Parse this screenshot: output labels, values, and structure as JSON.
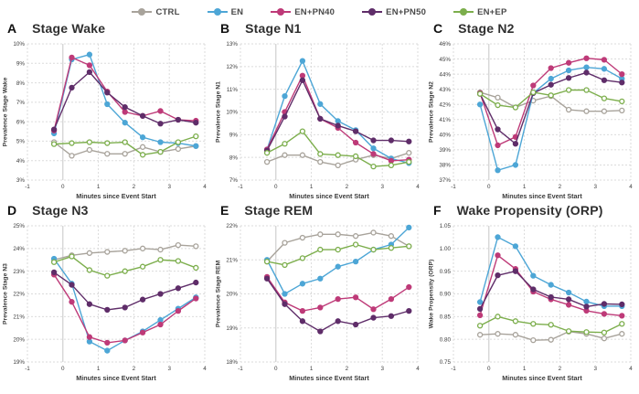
{
  "figure_title": "",
  "legend": {
    "items": [
      {
        "label": "CTRL",
        "color": "#A8A39B",
        "marker": "open"
      },
      {
        "label": "EN",
        "color": "#4DA6D6",
        "marker": "filled"
      },
      {
        "label": "EN+PN40",
        "color": "#BE3A78",
        "marker": "filled"
      },
      {
        "label": "EN+PN50",
        "color": "#5F2D69",
        "marker": "filled"
      },
      {
        "label": "EN+EP",
        "color": "#7CAE4C",
        "marker": "open"
      }
    ]
  },
  "style": {
    "grid_color": "#DBDBDB",
    "zero_line_color": "#C6C6C6",
    "tick_text_color": "#3d3d3d",
    "axis_label_color": "#3b3b3b"
  },
  "chart_data": [
    {
      "type": "line",
      "panel": "A",
      "title": "Stage Wake",
      "ylabel": "Prevalence Stage Wake",
      "xlabel": "Minutes since Event Start",
      "ylim": [
        3,
        10
      ],
      "ytick_step": 1,
      "ytick_format": "percent",
      "xlim": [
        -1,
        4
      ],
      "xticks": [
        -1,
        0,
        1,
        2,
        3,
        4
      ],
      "x": [
        -0.25,
        0.25,
        0.75,
        1.25,
        1.75,
        2.25,
        2.75,
        3.25,
        3.75
      ],
      "series": [
        {
          "name": "CTRL",
          "values": [
            4.95,
            4.25,
            4.55,
            4.35,
            4.35,
            4.7,
            4.45,
            4.6,
            4.75
          ]
        },
        {
          "name": "EN",
          "values": [
            5.4,
            9.2,
            9.45,
            6.9,
            5.95,
            5.2,
            4.95,
            4.9,
            4.75
          ]
        },
        {
          "name": "EN+PN40",
          "values": [
            5.55,
            9.3,
            8.9,
            7.55,
            6.5,
            6.3,
            6.55,
            6.1,
            6.05
          ]
        },
        {
          "name": "EN+PN50",
          "values": [
            5.6,
            7.75,
            8.55,
            7.5,
            6.75,
            6.3,
            5.9,
            6.1,
            5.95
          ]
        },
        {
          "name": "EN+EP",
          "values": [
            4.85,
            4.9,
            4.95,
            4.9,
            4.95,
            4.3,
            4.45,
            4.95,
            5.25
          ]
        }
      ]
    },
    {
      "type": "line",
      "panel": "B",
      "title": "Stage N1",
      "ylabel": "Prevalence Stage N1",
      "xlabel": "Minutes since Event Start",
      "ylim": [
        7,
        13
      ],
      "ytick_step": 1,
      "ytick_format": "percent",
      "xlim": [
        -1,
        4
      ],
      "xticks": [
        -1,
        0,
        1,
        2,
        3,
        4
      ],
      "x": [
        -0.25,
        0.25,
        0.75,
        1.25,
        1.75,
        2.25,
        2.75,
        3.25,
        3.75
      ],
      "series": [
        {
          "name": "CTRL",
          "values": [
            7.8,
            8.1,
            8.1,
            7.8,
            7.65,
            7.9,
            8.1,
            7.95,
            8.2
          ]
        },
        {
          "name": "EN",
          "values": [
            8.35,
            10.7,
            12.25,
            10.35,
            9.6,
            9.2,
            8.4,
            7.95,
            7.75
          ]
        },
        {
          "name": "EN+PN40",
          "values": [
            8.35,
            10.0,
            11.6,
            9.7,
            9.3,
            8.65,
            8.15,
            7.85,
            7.9
          ]
        },
        {
          "name": "EN+PN50",
          "values": [
            8.3,
            9.8,
            11.4,
            9.7,
            9.4,
            9.15,
            8.75,
            8.75,
            8.7
          ]
        },
        {
          "name": "EN+EP",
          "values": [
            8.2,
            8.6,
            9.15,
            8.15,
            8.1,
            8.05,
            7.6,
            7.65,
            7.8
          ]
        }
      ]
    },
    {
      "type": "line",
      "panel": "C",
      "title": "Stage N2",
      "ylabel": "Prevalence Stage N2",
      "xlabel": "Minutes since Event Start",
      "ylim": [
        37,
        46
      ],
      "ytick_step": 1,
      "ytick_format": "percent",
      "xlim": [
        -1,
        4
      ],
      "xticks": [
        -1,
        0,
        1,
        2,
        3,
        4
      ],
      "x": [
        -0.25,
        0.25,
        0.75,
        1.25,
        1.75,
        2.25,
        2.75,
        3.25,
        3.75
      ],
      "series": [
        {
          "name": "CTRL",
          "values": [
            42.8,
            42.45,
            41.8,
            42.25,
            42.55,
            41.65,
            41.55,
            41.55,
            41.6
          ]
        },
        {
          "name": "EN",
          "values": [
            42.0,
            37.65,
            38.0,
            42.75,
            43.7,
            44.25,
            44.45,
            44.35,
            43.7
          ]
        },
        {
          "name": "EN+PN40",
          "values": [
            42.75,
            39.3,
            39.85,
            43.25,
            44.4,
            44.75,
            45.05,
            44.95,
            44.0
          ]
        },
        {
          "name": "EN+PN50",
          "values": [
            42.7,
            40.35,
            39.4,
            42.75,
            43.3,
            43.75,
            44.1,
            43.6,
            43.45
          ]
        },
        {
          "name": "EN+EP",
          "values": [
            42.7,
            41.95,
            41.8,
            42.8,
            42.6,
            42.95,
            42.95,
            42.4,
            42.2
          ]
        }
      ]
    },
    {
      "type": "line",
      "panel": "D",
      "title": "Stage N3",
      "ylabel": "Prevalence Stage N3",
      "xlabel": "Minutes since Event Start",
      "ylim": [
        19,
        25
      ],
      "ytick_step": 1,
      "ytick_format": "percent",
      "xlim": [
        -1,
        4
      ],
      "xticks": [
        -1,
        0,
        1,
        2,
        3,
        4
      ],
      "x": [
        -0.25,
        0.25,
        0.75,
        1.25,
        1.75,
        2.25,
        2.75,
        3.25,
        3.75
      ],
      "series": [
        {
          "name": "CTRL",
          "values": [
            23.5,
            23.7,
            23.8,
            23.85,
            23.9,
            24.0,
            23.95,
            24.15,
            24.1
          ]
        },
        {
          "name": "EN",
          "values": [
            23.55,
            22.45,
            19.9,
            19.5,
            19.95,
            20.35,
            20.85,
            21.35,
            21.85
          ]
        },
        {
          "name": "EN+PN40",
          "values": [
            22.85,
            21.65,
            20.1,
            19.85,
            19.95,
            20.3,
            20.65,
            21.25,
            21.8
          ]
        },
        {
          "name": "EN+PN50",
          "values": [
            22.95,
            22.4,
            21.55,
            21.3,
            21.4,
            21.75,
            22.0,
            22.25,
            22.5
          ]
        },
        {
          "name": "EN+EP",
          "values": [
            23.4,
            23.65,
            23.05,
            22.8,
            23.0,
            23.2,
            23.5,
            23.45,
            23.15
          ]
        }
      ]
    },
    {
      "type": "line",
      "panel": "E",
      "title": "Stage REM",
      "ylabel": "Prevalence Stage REM",
      "xlabel": "Minutes since Event Start",
      "ylim": [
        18,
        22
      ],
      "ytick_step": 1,
      "ytick_format": "percent",
      "xlim": [
        -1,
        4
      ],
      "xticks": [
        -1,
        0,
        1,
        2,
        3,
        4
      ],
      "x": [
        -0.25,
        0.25,
        0.75,
        1.25,
        1.75,
        2.25,
        2.75,
        3.25,
        3.75
      ],
      "series": [
        {
          "name": "CTRL",
          "values": [
            20.95,
            21.5,
            21.65,
            21.75,
            21.75,
            21.7,
            21.8,
            21.7,
            21.4
          ]
        },
        {
          "name": "EN",
          "values": [
            21.0,
            20.0,
            20.3,
            20.45,
            20.8,
            20.95,
            21.3,
            21.45,
            21.95
          ]
        },
        {
          "name": "EN+PN40",
          "values": [
            20.5,
            19.75,
            19.5,
            19.6,
            19.85,
            19.9,
            19.55,
            19.85,
            20.2
          ]
        },
        {
          "name": "EN+PN50",
          "values": [
            20.45,
            19.7,
            19.2,
            18.9,
            19.2,
            19.1,
            19.3,
            19.35,
            19.5
          ]
        },
        {
          "name": "EN+EP",
          "values": [
            20.95,
            20.85,
            21.05,
            21.3,
            21.3,
            21.45,
            21.3,
            21.35,
            21.4
          ]
        }
      ]
    },
    {
      "type": "line",
      "panel": "F",
      "title": "Wake Propensity (ORP)",
      "ylabel": "Wake Propensity (ORP)",
      "xlabel": "Minutes since Event Start",
      "ylim": [
        0.75,
        1.05
      ],
      "ytick_step": 0.05,
      "ytick_format": "dec2",
      "xlim": [
        -1,
        4
      ],
      "xticks": [
        -1,
        0,
        1,
        2,
        3,
        4
      ],
      "x": [
        -0.25,
        0.25,
        0.75,
        1.25,
        1.75,
        2.25,
        2.75,
        3.25,
        3.75
      ],
      "series": [
        {
          "name": "CTRL",
          "values": [
            0.81,
            0.812,
            0.81,
            0.798,
            0.799,
            0.817,
            0.812,
            0.802,
            0.812
          ]
        },
        {
          "name": "EN",
          "values": [
            0.882,
            1.025,
            1.005,
            0.94,
            0.92,
            0.903,
            0.883,
            0.873,
            0.873
          ]
        },
        {
          "name": "EN+PN40",
          "values": [
            0.853,
            0.985,
            0.955,
            0.905,
            0.888,
            0.876,
            0.863,
            0.856,
            0.852
          ]
        },
        {
          "name": "EN+PN50",
          "values": [
            0.867,
            0.941,
            0.95,
            0.91,
            0.893,
            0.888,
            0.872,
            0.878,
            0.877
          ]
        },
        {
          "name": "EN+EP",
          "values": [
            0.83,
            0.85,
            0.84,
            0.834,
            0.832,
            0.818,
            0.816,
            0.815,
            0.834
          ]
        }
      ]
    }
  ]
}
